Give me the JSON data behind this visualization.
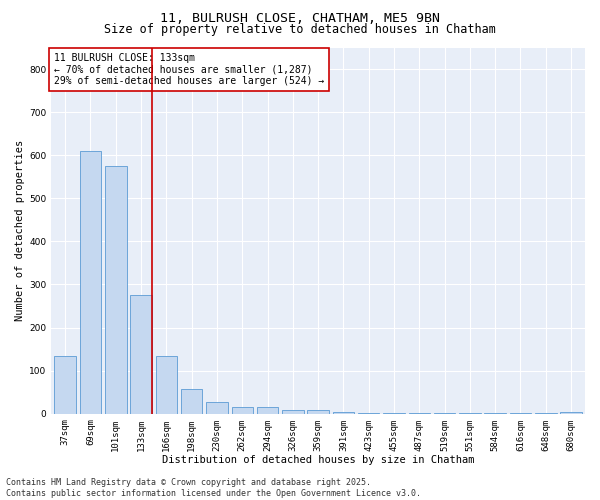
{
  "title1": "11, BULRUSH CLOSE, CHATHAM, ME5 9BN",
  "title2": "Size of property relative to detached houses in Chatham",
  "xlabel": "Distribution of detached houses by size in Chatham",
  "ylabel": "Number of detached properties",
  "footer": "Contains HM Land Registry data © Crown copyright and database right 2025.\nContains public sector information licensed under the Open Government Licence v3.0.",
  "categories": [
    "37sqm",
    "69sqm",
    "101sqm",
    "133sqm",
    "166sqm",
    "198sqm",
    "230sqm",
    "262sqm",
    "294sqm",
    "326sqm",
    "359sqm",
    "391sqm",
    "423sqm",
    "455sqm",
    "487sqm",
    "519sqm",
    "551sqm",
    "584sqm",
    "616sqm",
    "648sqm",
    "680sqm"
  ],
  "values": [
    135,
    610,
    575,
    275,
    135,
    58,
    28,
    15,
    15,
    8,
    8,
    5,
    2,
    2,
    2,
    2,
    2,
    2,
    2,
    2,
    5
  ],
  "bar_color": "#c5d8f0",
  "bar_edge_color": "#5b9bd5",
  "vline_color": "#cc0000",
  "annotation_title": "11 BULRUSH CLOSE: 133sqm",
  "annotation_line2": "← 70% of detached houses are smaller (1,287)",
  "annotation_line3": "29% of semi-detached houses are larger (524) →",
  "annotation_box_color": "#cc0000",
  "ylim": [
    0,
    850
  ],
  "yticks": [
    0,
    100,
    200,
    300,
    400,
    500,
    600,
    700,
    800
  ],
  "bg_color": "#ffffff",
  "plot_bg_color": "#e8eef8",
  "grid_color": "#ffffff",
  "title1_fontsize": 9.5,
  "title2_fontsize": 8.5,
  "xlabel_fontsize": 7.5,
  "ylabel_fontsize": 7.5,
  "tick_fontsize": 6.5,
  "annotation_fontsize": 7,
  "footer_fontsize": 6
}
